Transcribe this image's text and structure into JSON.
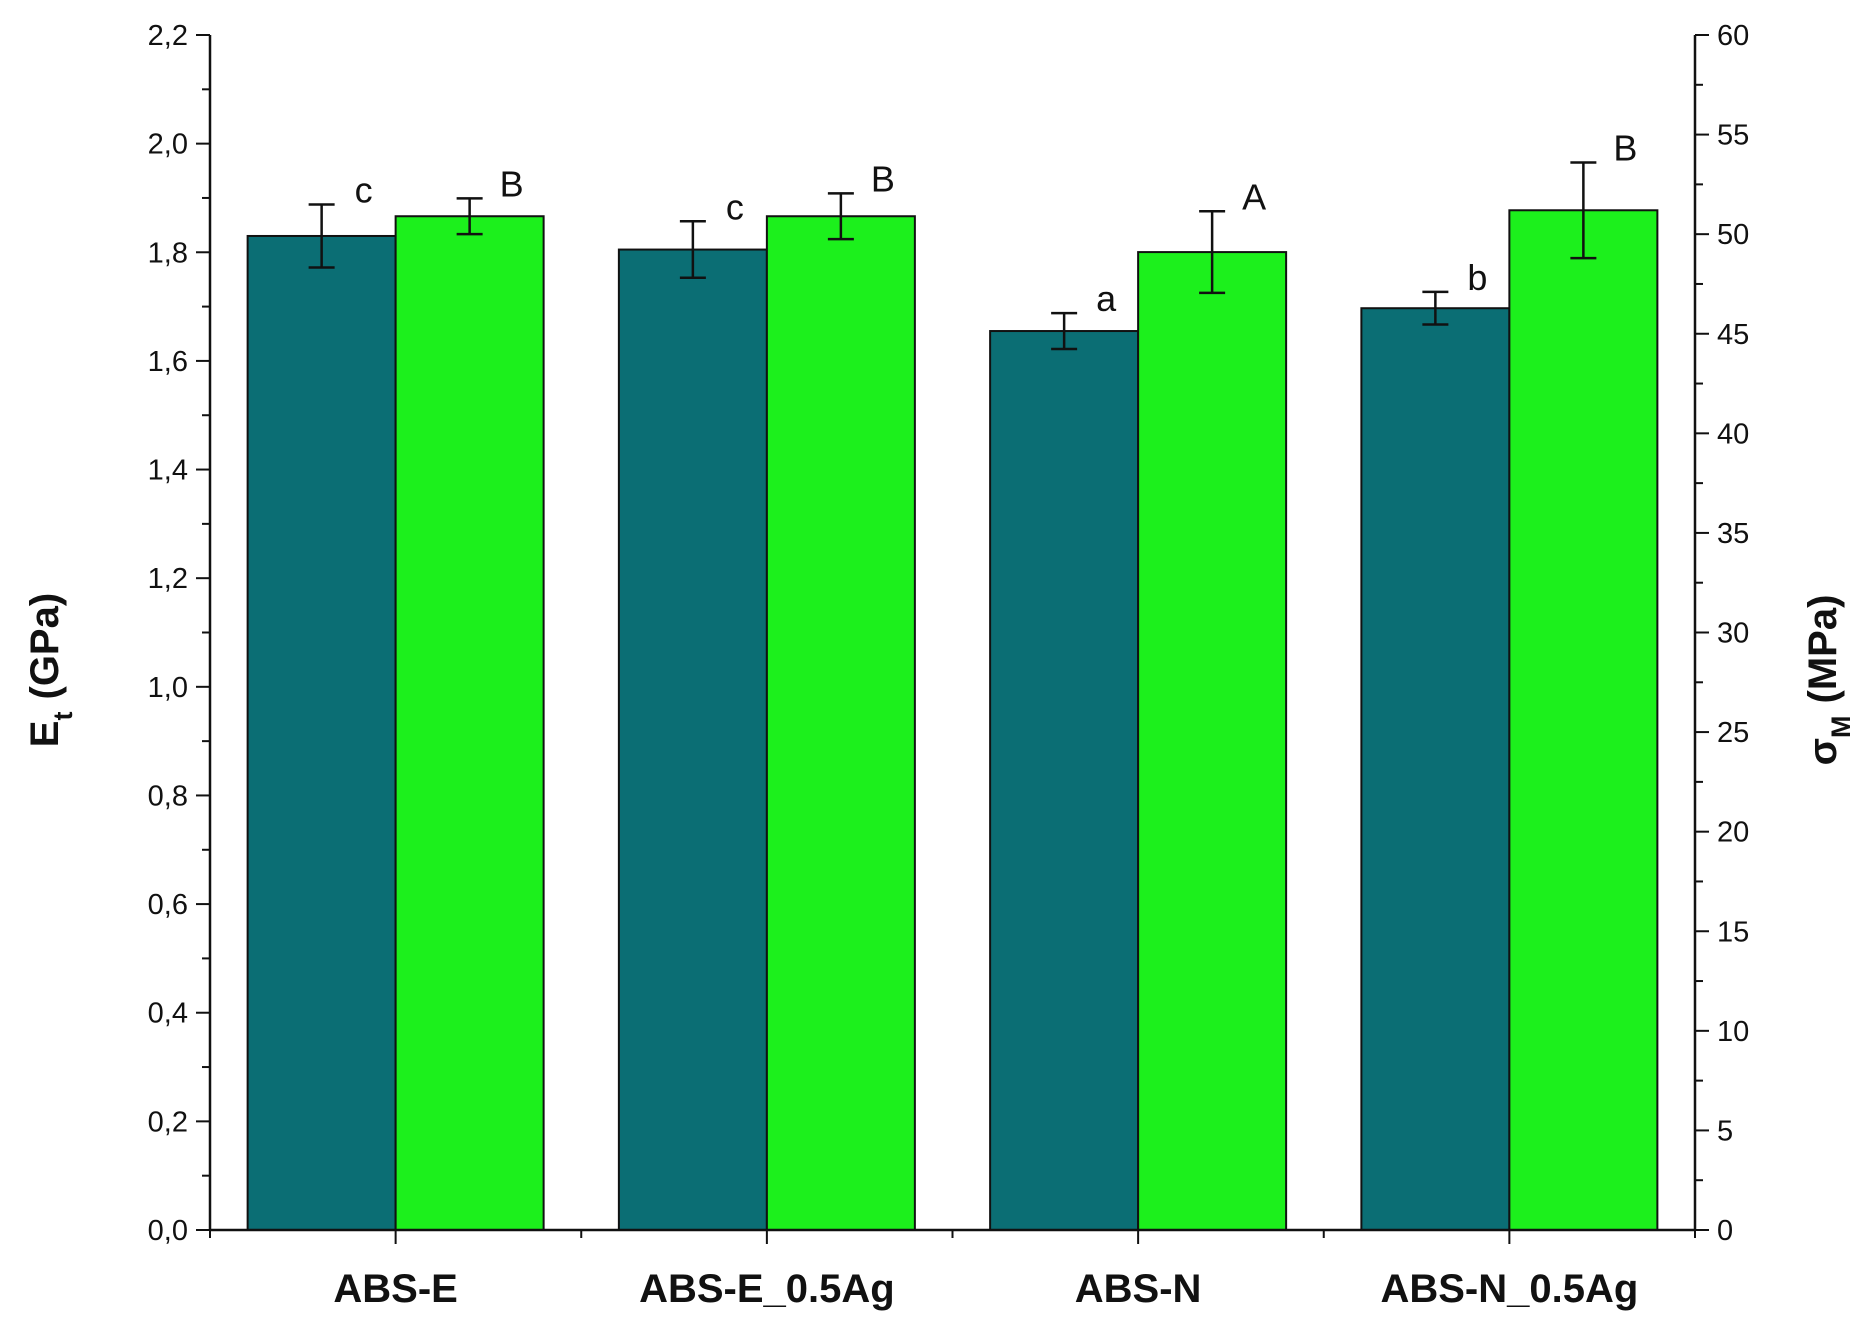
{
  "chart_data": {
    "type": "bar",
    "categories": [
      "ABS-E",
      "ABS-E_0.5Ag",
      "ABS-N",
      "ABS-N_0.5Ag"
    ],
    "series": [
      {
        "axis": "left",
        "color": "#0b6e74",
        "values": [
          1.83,
          1.805,
          1.655,
          1.697
        ],
        "errors": [
          0.058,
          0.052,
          0.033,
          0.03
        ],
        "annotations": [
          "c",
          "c",
          "a",
          "b"
        ]
      },
      {
        "axis": "right",
        "color": "#1cf01c",
        "values": [
          50.9,
          50.9,
          49.1,
          51.2
        ],
        "errors": [
          0.9,
          1.15,
          2.05,
          2.4
        ],
        "annotations": [
          "B",
          "B",
          "A",
          "B"
        ]
      }
    ],
    "left_axis": {
      "label_main": "E",
      "label_sub": "t",
      "label_unit": "(GPa)",
      "ylim": [
        0,
        2.2
      ],
      "ticks": [
        "0,0",
        "0,2",
        "0,4",
        "0,6",
        "0,8",
        "1,0",
        "1,2",
        "1,4",
        "1,6",
        "1,8",
        "2,0",
        "2,2"
      ]
    },
    "right_axis": {
      "label_main": "σ",
      "label_sub": "M",
      "label_unit": "(MPa)",
      "ylim": [
        0,
        60
      ],
      "ticks": [
        "0",
        "5",
        "10",
        "15",
        "20",
        "25",
        "30",
        "35",
        "40",
        "45",
        "50",
        "55",
        "60"
      ]
    },
    "grid": false,
    "legend": "none"
  }
}
